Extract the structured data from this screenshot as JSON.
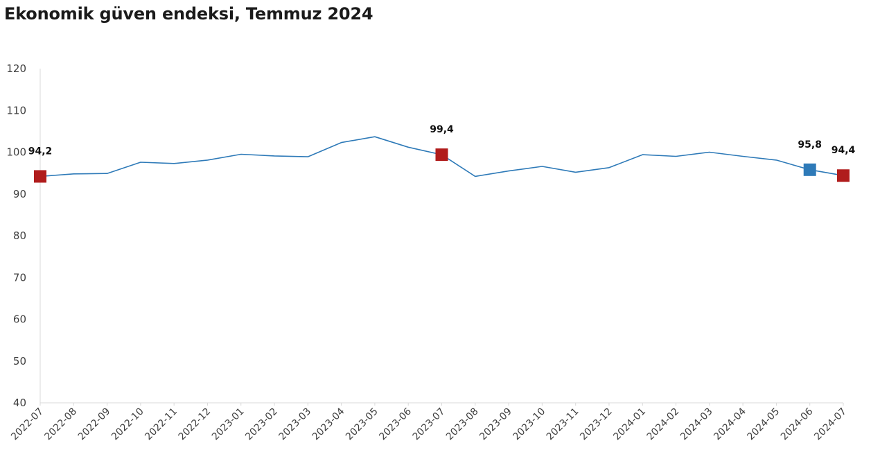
{
  "title": "Ekonomik güven endeksi, Temmuz 2024",
  "colors": {
    "line": "#2e7ab8",
    "highlight_red": "#b01c1c",
    "highlight_blue": "#2e7ab8",
    "axis": "#d9d9d9"
  },
  "chart_data": {
    "type": "line",
    "title": "Ekonomik güven endeksi, Temmuz 2024",
    "xlabel": "",
    "ylabel": "",
    "ylim": [
      40,
      120
    ],
    "yticks": [
      40,
      50,
      60,
      70,
      80,
      90,
      100,
      110,
      120
    ],
    "grid": false,
    "legend": "none",
    "categories": [
      "2022-07",
      "2022-08",
      "2022-09",
      "2022-10",
      "2022-11",
      "2022-12",
      "2023-01",
      "2023-02",
      "2023-03",
      "2023-04",
      "2023-05",
      "2023-06",
      "2023-07",
      "2023-08",
      "2023-09",
      "2023-10",
      "2023-11",
      "2023-12",
      "2024-01",
      "2024-02",
      "2024-03",
      "2024-04",
      "2024-05",
      "2024-06",
      "2024-07"
    ],
    "series": [
      {
        "values": [
          94.2,
          94.8,
          94.9,
          97.6,
          97.3,
          98.1,
          99.5,
          99.1,
          98.9,
          102.3,
          103.7,
          101.2,
          99.4,
          94.2,
          95.5,
          96.6,
          95.2,
          96.3,
          99.4,
          99.0,
          100.0,
          99.0,
          98.1,
          95.8,
          94.4
        ]
      }
    ],
    "markers": [
      {
        "category": "2022-07",
        "value": 94.2,
        "label": "94,2",
        "color": "#b01c1c"
      },
      {
        "category": "2023-07",
        "value": 99.4,
        "label": "99,4",
        "color": "#b01c1c"
      },
      {
        "category": "2024-06",
        "value": 95.8,
        "label": "95,8",
        "color": "#2e7ab8"
      },
      {
        "category": "2024-07",
        "value": 94.4,
        "label": "94,4",
        "color": "#b01c1c"
      }
    ]
  }
}
